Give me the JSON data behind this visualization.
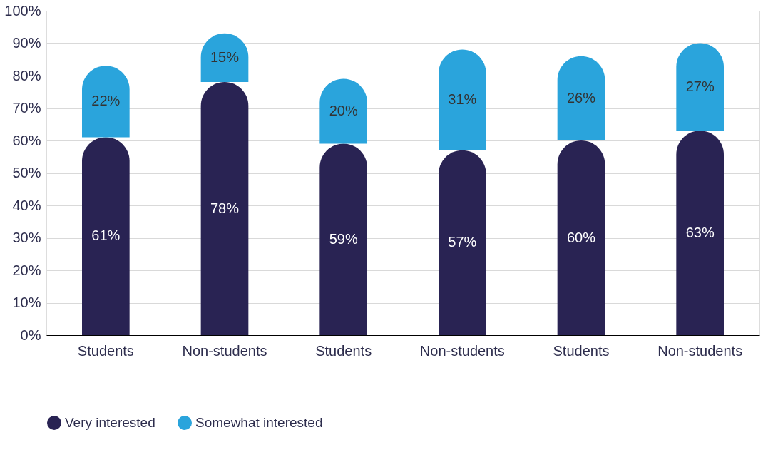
{
  "chart_data": {
    "type": "bar",
    "stacked": true,
    "categories": [
      "Students",
      "Non-students",
      "Students",
      "Non-students",
      "Students",
      "Non-students"
    ],
    "series": [
      {
        "name": "Very interested",
        "color": "#292353",
        "values": [
          61,
          78,
          59,
          57,
          60,
          63
        ]
      },
      {
        "name": "Somewhat interested",
        "color": "#2aa4dc",
        "values": [
          22,
          15,
          20,
          31,
          26,
          27
        ]
      }
    ],
    "ylim": [
      0,
      100
    ],
    "yticks": [
      {
        "value": 0,
        "label": "0%"
      },
      {
        "value": 10,
        "label": "10%"
      },
      {
        "value": 20,
        "label": "20%"
      },
      {
        "value": 30,
        "label": "30%"
      },
      {
        "value": 40,
        "label": "40%"
      },
      {
        "value": 50,
        "label": "50%"
      },
      {
        "value": 60,
        "label": "60%"
      },
      {
        "value": 70,
        "label": "70%"
      },
      {
        "value": 80,
        "label": "80%"
      },
      {
        "value": 90,
        "label": "90%"
      },
      {
        "value": 100,
        "label": "100%"
      }
    ],
    "value_labels": [
      [
        "61%",
        "78%",
        "59%",
        "57%",
        "60%",
        "63%"
      ],
      [
        "22%",
        "15%",
        "20%",
        "31%",
        "26%",
        "27%"
      ]
    ],
    "grid": "y",
    "legend": "bottom"
  }
}
